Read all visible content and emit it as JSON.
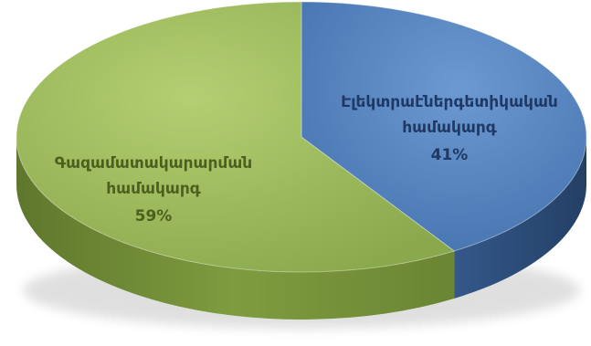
{
  "chart_data": {
    "type": "pie",
    "title": "",
    "slices": [
      {
        "label_line1": "Էլեկտրաէներգետիկական",
        "label_line2": "համակարգ",
        "percent_label": "41%",
        "value": 41,
        "color": "#4f81bd",
        "side_color": "#2f5077",
        "label_color": "#1f3864"
      },
      {
        "label_line1": "Գազամատակարարման",
        "label_line2": "համակարգ",
        "percent_label": "59%",
        "value": 59,
        "color": "#9bbb59",
        "side_color": "#6e8a35",
        "label_color": "#4b5f1e"
      }
    ]
  }
}
